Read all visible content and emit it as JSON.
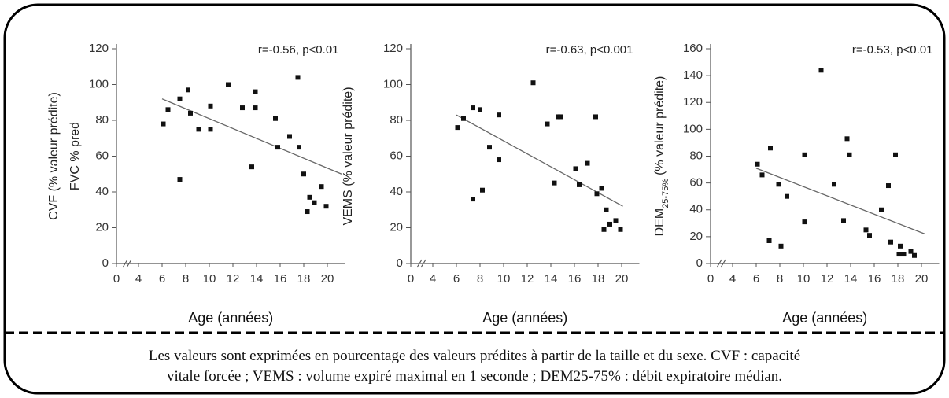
{
  "chart_data": [
    {
      "type": "scatter",
      "ylabel": "CVF (% valeur prédite)",
      "ylabel2": "FVC % pred",
      "xlabel": "Age (années)",
      "annotation": "r=-0.56, p<0.01",
      "color": "#111111",
      "x_axis_break": true,
      "x": [
        6.1,
        6.5,
        7.5,
        7.5,
        8.2,
        8.4,
        9.1,
        10.1,
        10.1,
        11.6,
        12.8,
        13.6,
        13.9,
        13.9,
        15.6,
        15.8,
        16.8,
        17.5,
        17.6,
        18,
        18.3,
        18.5,
        18.9,
        19.5,
        19.9
      ],
      "y": [
        78,
        86,
        92,
        47,
        97,
        84,
        75,
        75,
        88,
        100,
        87,
        54,
        96,
        87,
        81,
        65,
        71,
        104,
        65,
        50,
        29,
        37,
        34,
        43,
        32
      ],
      "trend": {
        "x": [
          6,
          21.2
        ],
        "y": [
          92,
          50
        ]
      },
      "xlim": [
        0,
        21.5
      ],
      "xticks": [
        0,
        4,
        6,
        8,
        10,
        12,
        14,
        16,
        18,
        20
      ],
      "ylim": [
        0,
        120
      ],
      "yticks": [
        0,
        20,
        40,
        60,
        80,
        100,
        120
      ]
    },
    {
      "type": "scatter",
      "ylabel": "VEMS (% valeur prédite)",
      "xlabel": "Age (années)",
      "annotation": "r=-0.63, p<0.001",
      "color": "#111111",
      "x_axis_break": true,
      "x": [
        6.1,
        6.6,
        7.4,
        7.4,
        8.0,
        8.2,
        8.8,
        9.6,
        9.6,
        12.5,
        13.7,
        14.3,
        14.6,
        14.8,
        16.1,
        16.4,
        17.1,
        17.8,
        17.9,
        18.3,
        18.5,
        18.7,
        19,
        19.5,
        19.9
      ],
      "y": [
        76,
        81,
        36,
        87,
        86,
        41,
        65,
        83,
        58,
        101,
        78,
        45,
        82,
        82,
        53,
        44,
        56,
        82,
        39,
        42,
        19,
        30,
        22,
        24,
        19
      ],
      "trend": {
        "x": [
          6,
          20.1
        ],
        "y": [
          83,
          32
        ]
      },
      "xlim": [
        0,
        21.5
      ],
      "xticks": [
        0,
        4,
        6,
        8,
        10,
        12,
        14,
        16,
        18,
        20
      ],
      "ylim": [
        0,
        120
      ],
      "yticks": [
        0,
        20,
        40,
        60,
        80,
        100,
        120
      ]
    },
    {
      "type": "scatter",
      "ylabel": [
        "DEM",
        "25-75%",
        "(% valeur prédite)"
      ],
      "xlabel": "Age (années)",
      "annotation": "r=-0.53, p<0.01",
      "color": "#111111",
      "x_axis_break": true,
      "x": [
        6.1,
        6.5,
        7.2,
        7.1,
        7.9,
        8.1,
        8.6,
        10.1,
        10.1,
        11.5,
        12.6,
        13.4,
        13.7,
        13.9,
        15.3,
        15.6,
        16.6,
        17.2,
        17.4,
        17.8,
        18.1,
        18.2,
        18.5,
        19.1,
        19.4
      ],
      "y": [
        74,
        66,
        86,
        17,
        59,
        13,
        50,
        81,
        31,
        144,
        59,
        32,
        93,
        81,
        25,
        21,
        40,
        58,
        16,
        81,
        7,
        13,
        7,
        9,
        6
      ],
      "trend": {
        "x": [
          6,
          20.3
        ],
        "y": [
          71,
          22
        ]
      },
      "xlim": [
        0,
        21.5
      ],
      "xticks": [
        0,
        4,
        6,
        8,
        10,
        12,
        14,
        16,
        18,
        20
      ],
      "ylim": [
        0,
        160
      ],
      "yticks": [
        0,
        20,
        40,
        60,
        80,
        100,
        120,
        140,
        160
      ]
    }
  ],
  "caption": [
    "Les valeurs sont exprimées en pourcentage des valeurs prédites à partir de la taille et du sexe. CVF : capacité",
    "vitale forcée ; VEMS : volume expiré maximal en 1 seconde ; DEM25-75% : débit expiratoire médian."
  ]
}
